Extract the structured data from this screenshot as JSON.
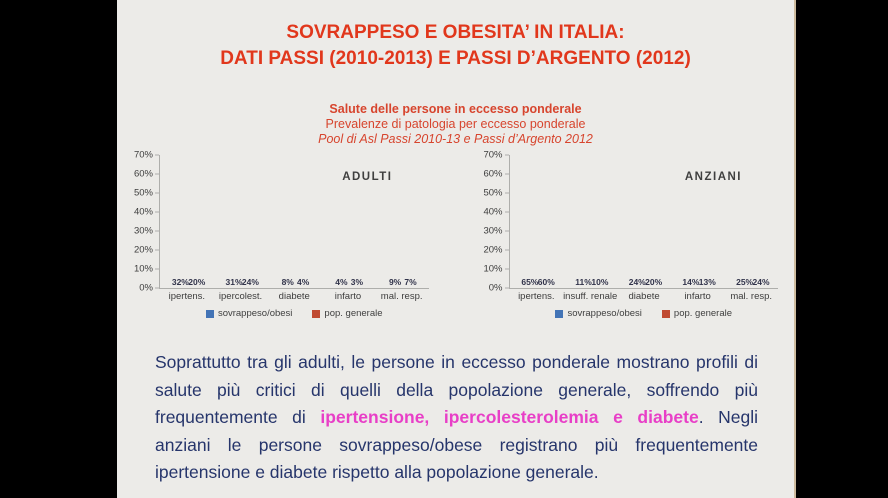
{
  "slide": {
    "title_line1": "SOVRAPPESO E OBESITA’ IN ITALIA:",
    "title_line2": "DATI PASSI (2010-2013) E PASSI D’ARGENTO (2012)",
    "subtitle_line1": "Salute delle persone in eccesso ponderale",
    "subtitle_line2": "Prevalenze di patologia per eccesso ponderale",
    "subtitle_line3": "Pool di Asl Passi 2010-13 e Passi d’Argento 2012"
  },
  "colors": {
    "slide_bg": "#ecebe8",
    "title_red": "#e1371c",
    "subtitle_red": "#d7452e",
    "series_blue": "#4374b6",
    "series_red": "#c04a31",
    "body_navy": "#26356b",
    "highlight_magenta": "#e83fc7"
  },
  "chart_data": [
    {
      "type": "bar",
      "title": "ADULTI",
      "categories": [
        "ipertens.",
        "ipercolest.",
        "diabete",
        "infarto",
        "mal. resp."
      ],
      "series": [
        {
          "name": "sovrappeso/obesi",
          "color": "#4374b6",
          "values": [
            32,
            31,
            8,
            4,
            9
          ]
        },
        {
          "name": "pop. generale",
          "color": "#c04a31",
          "values": [
            20,
            24,
            4,
            3,
            7
          ]
        }
      ],
      "xlabel": "",
      "ylabel": "",
      "ylim": [
        0,
        70
      ],
      "ytick_step": 10,
      "ytick_suffix": "%",
      "data_label_suffix": "%",
      "grid": false,
      "legend_position": "bottom"
    },
    {
      "type": "bar",
      "title": "ANZIANI",
      "categories": [
        "ipertens.",
        "insuff. renale",
        "diabete",
        "infarto",
        "mal. resp."
      ],
      "series": [
        {
          "name": "sovrappeso/obesi",
          "color": "#4374b6",
          "values": [
            65,
            11,
            24,
            14,
            25
          ]
        },
        {
          "name": "pop. generale",
          "color": "#c04a31",
          "values": [
            60,
            10,
            20,
            13,
            24
          ]
        }
      ],
      "xlabel": "",
      "ylabel": "",
      "ylim": [
        0,
        70
      ],
      "ytick_step": 10,
      "ytick_suffix": "%",
      "data_label_suffix": "%",
      "grid": false,
      "legend_position": "bottom"
    }
  ],
  "paragraph": {
    "part1": "Soprattutto tra gli adulti, le persone in eccesso ponderale mostrano profili di salute più critici di quelli della popolazione generale, soffrendo più frequentemente di ",
    "highlight": "ipertensione, ipercolesterolemia e diabete",
    "part2": ". Negli anziani le persone sovrappeso/obese registrano più frequentemente ipertensione e diabete rispetto alla popolazione generale."
  }
}
